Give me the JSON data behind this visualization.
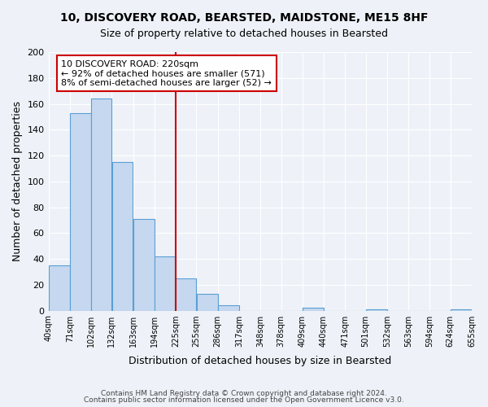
{
  "title": "10, DISCOVERY ROAD, BEARSTED, MAIDSTONE, ME15 8HF",
  "subtitle": "Size of property relative to detached houses in Bearsted",
  "xlabel": "Distribution of detached houses by size in Bearsted",
  "ylabel": "Number of detached properties",
  "bar_left_edges": [
    40,
    71,
    102,
    132,
    163,
    194,
    225,
    255,
    286,
    317,
    348,
    378,
    409,
    440,
    471,
    501,
    532,
    563,
    594,
    624
  ],
  "bar_widths": [
    31,
    31,
    30,
    31,
    31,
    31,
    30,
    31,
    31,
    31,
    30,
    31,
    31,
    31,
    30,
    31,
    31,
    31,
    30,
    31
  ],
  "bar_heights": [
    35,
    153,
    164,
    115,
    71,
    42,
    25,
    13,
    4,
    0,
    0,
    0,
    2,
    0,
    0,
    1,
    0,
    0,
    0,
    1
  ],
  "tick_labels": [
    "40sqm",
    "71sqm",
    "102sqm",
    "132sqm",
    "163sqm",
    "194sqm",
    "225sqm",
    "255sqm",
    "286sqm",
    "317sqm",
    "348sqm",
    "378sqm",
    "409sqm",
    "440sqm",
    "471sqm",
    "501sqm",
    "532sqm",
    "563sqm",
    "594sqm",
    "624sqm",
    "655sqm"
  ],
  "tick_positions": [
    40,
    71,
    102,
    132,
    163,
    194,
    225,
    255,
    286,
    317,
    348,
    378,
    409,
    440,
    471,
    501,
    532,
    563,
    594,
    624,
    655
  ],
  "bar_color": "#c5d8f0",
  "bar_edge_color": "#5a9fd4",
  "vline_x": 225,
  "vline_color": "#cc0000",
  "annotation_title": "10 DISCOVERY ROAD: 220sqm",
  "annotation_line1": "← 92% of detached houses are smaller (571)",
  "annotation_line2": "8% of semi-detached houses are larger (52) →",
  "annotation_box_color": "#ffffff",
  "annotation_box_edge": "#cc0000",
  "ylim": [
    0,
    200
  ],
  "yticks": [
    0,
    20,
    40,
    60,
    80,
    100,
    120,
    140,
    160,
    180,
    200
  ],
  "footer1": "Contains HM Land Registry data © Crown copyright and database right 2024.",
  "footer2": "Contains public sector information licensed under the Open Government Licence v3.0.",
  "bg_color": "#eef2f8"
}
